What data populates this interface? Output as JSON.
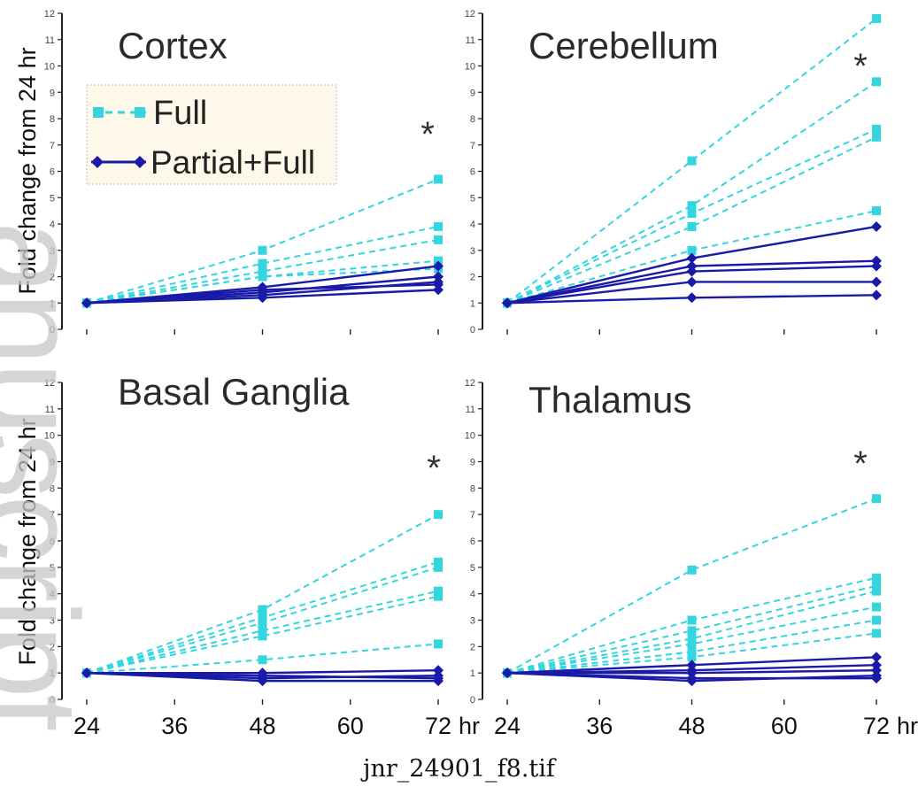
{
  "watermark": "anuscript",
  "caption": "jnr_24901_f8.tif",
  "x_axis": {
    "ticks": [
      24,
      36,
      48,
      60,
      72
    ],
    "unit": "hr"
  },
  "y_axis": {
    "label": "Fold change from 24 hr"
  },
  "legend": {
    "placement": "top-left of Cortex panel",
    "entries": [
      {
        "label": "Full",
        "color": "#33d6df",
        "style": "dashed",
        "marker": "square"
      },
      {
        "label": "Partial+Full",
        "color": "#1a1aa8",
        "style": "solid",
        "marker": "diamond"
      }
    ]
  },
  "colors": {
    "full": "#33d6df",
    "partial": "#1a1aa8",
    "axis": "#222222"
  },
  "chart_data": [
    {
      "type": "line",
      "title": "Cortex",
      "significance": "*",
      "x": [
        24,
        48,
        72
      ],
      "ylim": [
        0,
        12
      ],
      "yticks": [
        0,
        1,
        2,
        3,
        4,
        5,
        6,
        7,
        8,
        9,
        10,
        11,
        12
      ],
      "series": [
        {
          "group": "Full",
          "values": [
            1,
            3.0,
            5.7
          ]
        },
        {
          "group": "Full",
          "values": [
            1,
            2.5,
            3.9
          ]
        },
        {
          "group": "Full",
          "values": [
            1,
            2.2,
            3.4
          ]
        },
        {
          "group": "Full",
          "values": [
            1,
            2.0,
            2.6
          ]
        },
        {
          "group": "Full",
          "values": [
            1,
            2.0,
            2.3
          ]
        },
        {
          "group": "Partial+Full",
          "values": [
            1,
            1.6,
            2.4
          ]
        },
        {
          "group": "Partial+Full",
          "values": [
            1,
            1.4,
            2.0
          ]
        },
        {
          "group": "Partial+Full",
          "values": [
            1,
            1.5,
            1.7
          ]
        },
        {
          "group": "Partial+Full",
          "values": [
            1,
            1.2,
            1.5
          ]
        },
        {
          "group": "Partial+Full",
          "values": [
            1,
            1.3,
            1.8
          ]
        }
      ]
    },
    {
      "type": "line",
      "title": "Cerebellum",
      "significance": "*",
      "x": [
        24,
        48,
        72
      ],
      "ylim": [
        0,
        12
      ],
      "yticks": [
        0,
        1,
        2,
        3,
        4,
        5,
        6,
        7,
        8,
        9,
        10,
        11,
        12
      ],
      "series": [
        {
          "group": "Full",
          "values": [
            1,
            6.4,
            11.8
          ]
        },
        {
          "group": "Full",
          "values": [
            1,
            4.7,
            9.4
          ]
        },
        {
          "group": "Full",
          "values": [
            1,
            4.4,
            7.6
          ]
        },
        {
          "group": "Full",
          "values": [
            1,
            3.9,
            7.3
          ]
        },
        {
          "group": "Full",
          "values": [
            1,
            3.0,
            4.5
          ]
        },
        {
          "group": "Partial+Full",
          "values": [
            1,
            2.7,
            3.9
          ]
        },
        {
          "group": "Partial+Full",
          "values": [
            1,
            2.4,
            2.6
          ]
        },
        {
          "group": "Partial+Full",
          "values": [
            1,
            2.2,
            2.4
          ]
        },
        {
          "group": "Partial+Full",
          "values": [
            1,
            1.8,
            1.8
          ]
        },
        {
          "group": "Partial+Full",
          "values": [
            1,
            1.2,
            1.3
          ]
        }
      ]
    },
    {
      "type": "line",
      "title": "Basal Ganglia",
      "significance": "*",
      "x": [
        24,
        48,
        72
      ],
      "ylim": [
        0,
        12
      ],
      "yticks": [
        0,
        1,
        2,
        3,
        4,
        5,
        6,
        7,
        8,
        9,
        10,
        11,
        12
      ],
      "series": [
        {
          "group": "Full",
          "values": [
            1,
            3.4,
            7.0
          ]
        },
        {
          "group": "Full",
          "values": [
            1,
            3.1,
            5.2
          ]
        },
        {
          "group": "Full",
          "values": [
            1,
            2.9,
            5.0
          ]
        },
        {
          "group": "Full",
          "values": [
            1,
            2.6,
            4.1
          ]
        },
        {
          "group": "Full",
          "values": [
            1,
            2.4,
            3.9
          ]
        },
        {
          "group": "Full",
          "values": [
            1,
            1.5,
            2.1
          ]
        },
        {
          "group": "Partial+Full",
          "values": [
            1,
            1.0,
            1.1
          ]
        },
        {
          "group": "Partial+Full",
          "values": [
            1,
            0.8,
            0.9
          ]
        },
        {
          "group": "Partial+Full",
          "values": [
            1,
            0.9,
            0.8
          ]
        },
        {
          "group": "Partial+Full",
          "values": [
            1,
            0.7,
            0.7
          ]
        }
      ]
    },
    {
      "type": "line",
      "title": "Thalamus",
      "significance": "*",
      "x": [
        24,
        48,
        72
      ],
      "ylim": [
        0,
        12
      ],
      "yticks": [
        0,
        1,
        2,
        3,
        4,
        5,
        6,
        7,
        8,
        9,
        10,
        11,
        12
      ],
      "series": [
        {
          "group": "Full",
          "values": [
            1,
            4.9,
            7.6
          ]
        },
        {
          "group": "Full",
          "values": [
            1,
            3.0,
            4.6
          ]
        },
        {
          "group": "Full",
          "values": [
            1,
            2.6,
            4.3
          ]
        },
        {
          "group": "Full",
          "values": [
            1,
            2.3,
            4.1
          ]
        },
        {
          "group": "Full",
          "values": [
            1,
            2.1,
            3.5
          ]
        },
        {
          "group": "Full",
          "values": [
            1,
            1.8,
            3.0
          ]
        },
        {
          "group": "Full",
          "values": [
            1,
            1.6,
            2.5
          ]
        },
        {
          "group": "Partial+Full",
          "values": [
            1,
            1.3,
            1.6
          ]
        },
        {
          "group": "Partial+Full",
          "values": [
            1,
            1.1,
            1.3
          ]
        },
        {
          "group": "Partial+Full",
          "values": [
            1,
            1.0,
            1.1
          ]
        },
        {
          "group": "Partial+Full",
          "values": [
            1,
            0.8,
            0.8
          ]
        },
        {
          "group": "Partial+Full",
          "values": [
            1,
            0.7,
            0.9
          ]
        }
      ]
    }
  ]
}
